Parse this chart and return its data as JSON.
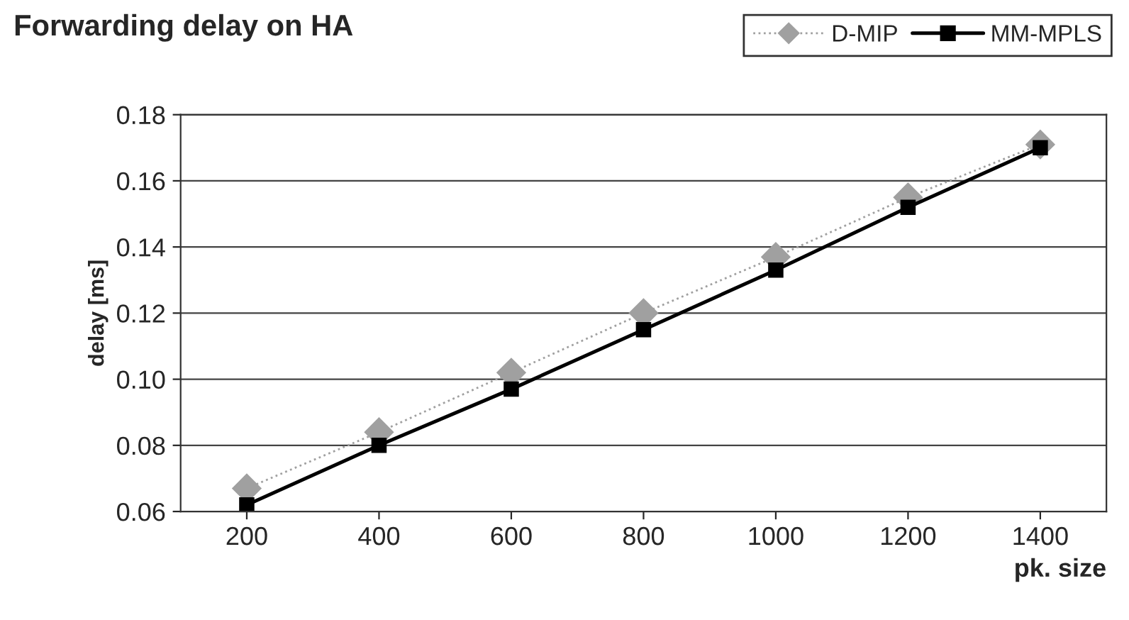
{
  "chart_data": {
    "type": "line",
    "title": "Forwarding delay on HA",
    "xlabel": "pk. size",
    "ylabel": "delay [ms]",
    "categories": [
      "200",
      "400",
      "600",
      "800",
      "1000",
      "1200",
      "1400"
    ],
    "series": [
      {
        "name": "D-MIP",
        "color": "#a0a0a0",
        "marker": "diamond",
        "line_style": "dotted",
        "values": [
          0.067,
          0.084,
          0.102,
          0.12,
          0.137,
          0.155,
          0.171
        ]
      },
      {
        "name": "MM-MPLS",
        "color": "#000000",
        "marker": "square",
        "line_style": "solid",
        "values": [
          0.062,
          0.08,
          0.097,
          0.115,
          0.133,
          0.152,
          0.17
        ]
      }
    ],
    "ylim": [
      0.06,
      0.18
    ],
    "yticks": [
      {
        "value": 0.06,
        "label": "0.06"
      },
      {
        "value": 0.08,
        "label": "0.08"
      },
      {
        "value": 0.1,
        "label": "0.10"
      },
      {
        "value": 0.12,
        "label": "0.12"
      },
      {
        "value": 0.14,
        "label": "0.14"
      },
      {
        "value": 0.16,
        "label": "0.16"
      },
      {
        "value": 0.18,
        "label": "0.18"
      }
    ],
    "grid": "y",
    "legend": "top right"
  }
}
